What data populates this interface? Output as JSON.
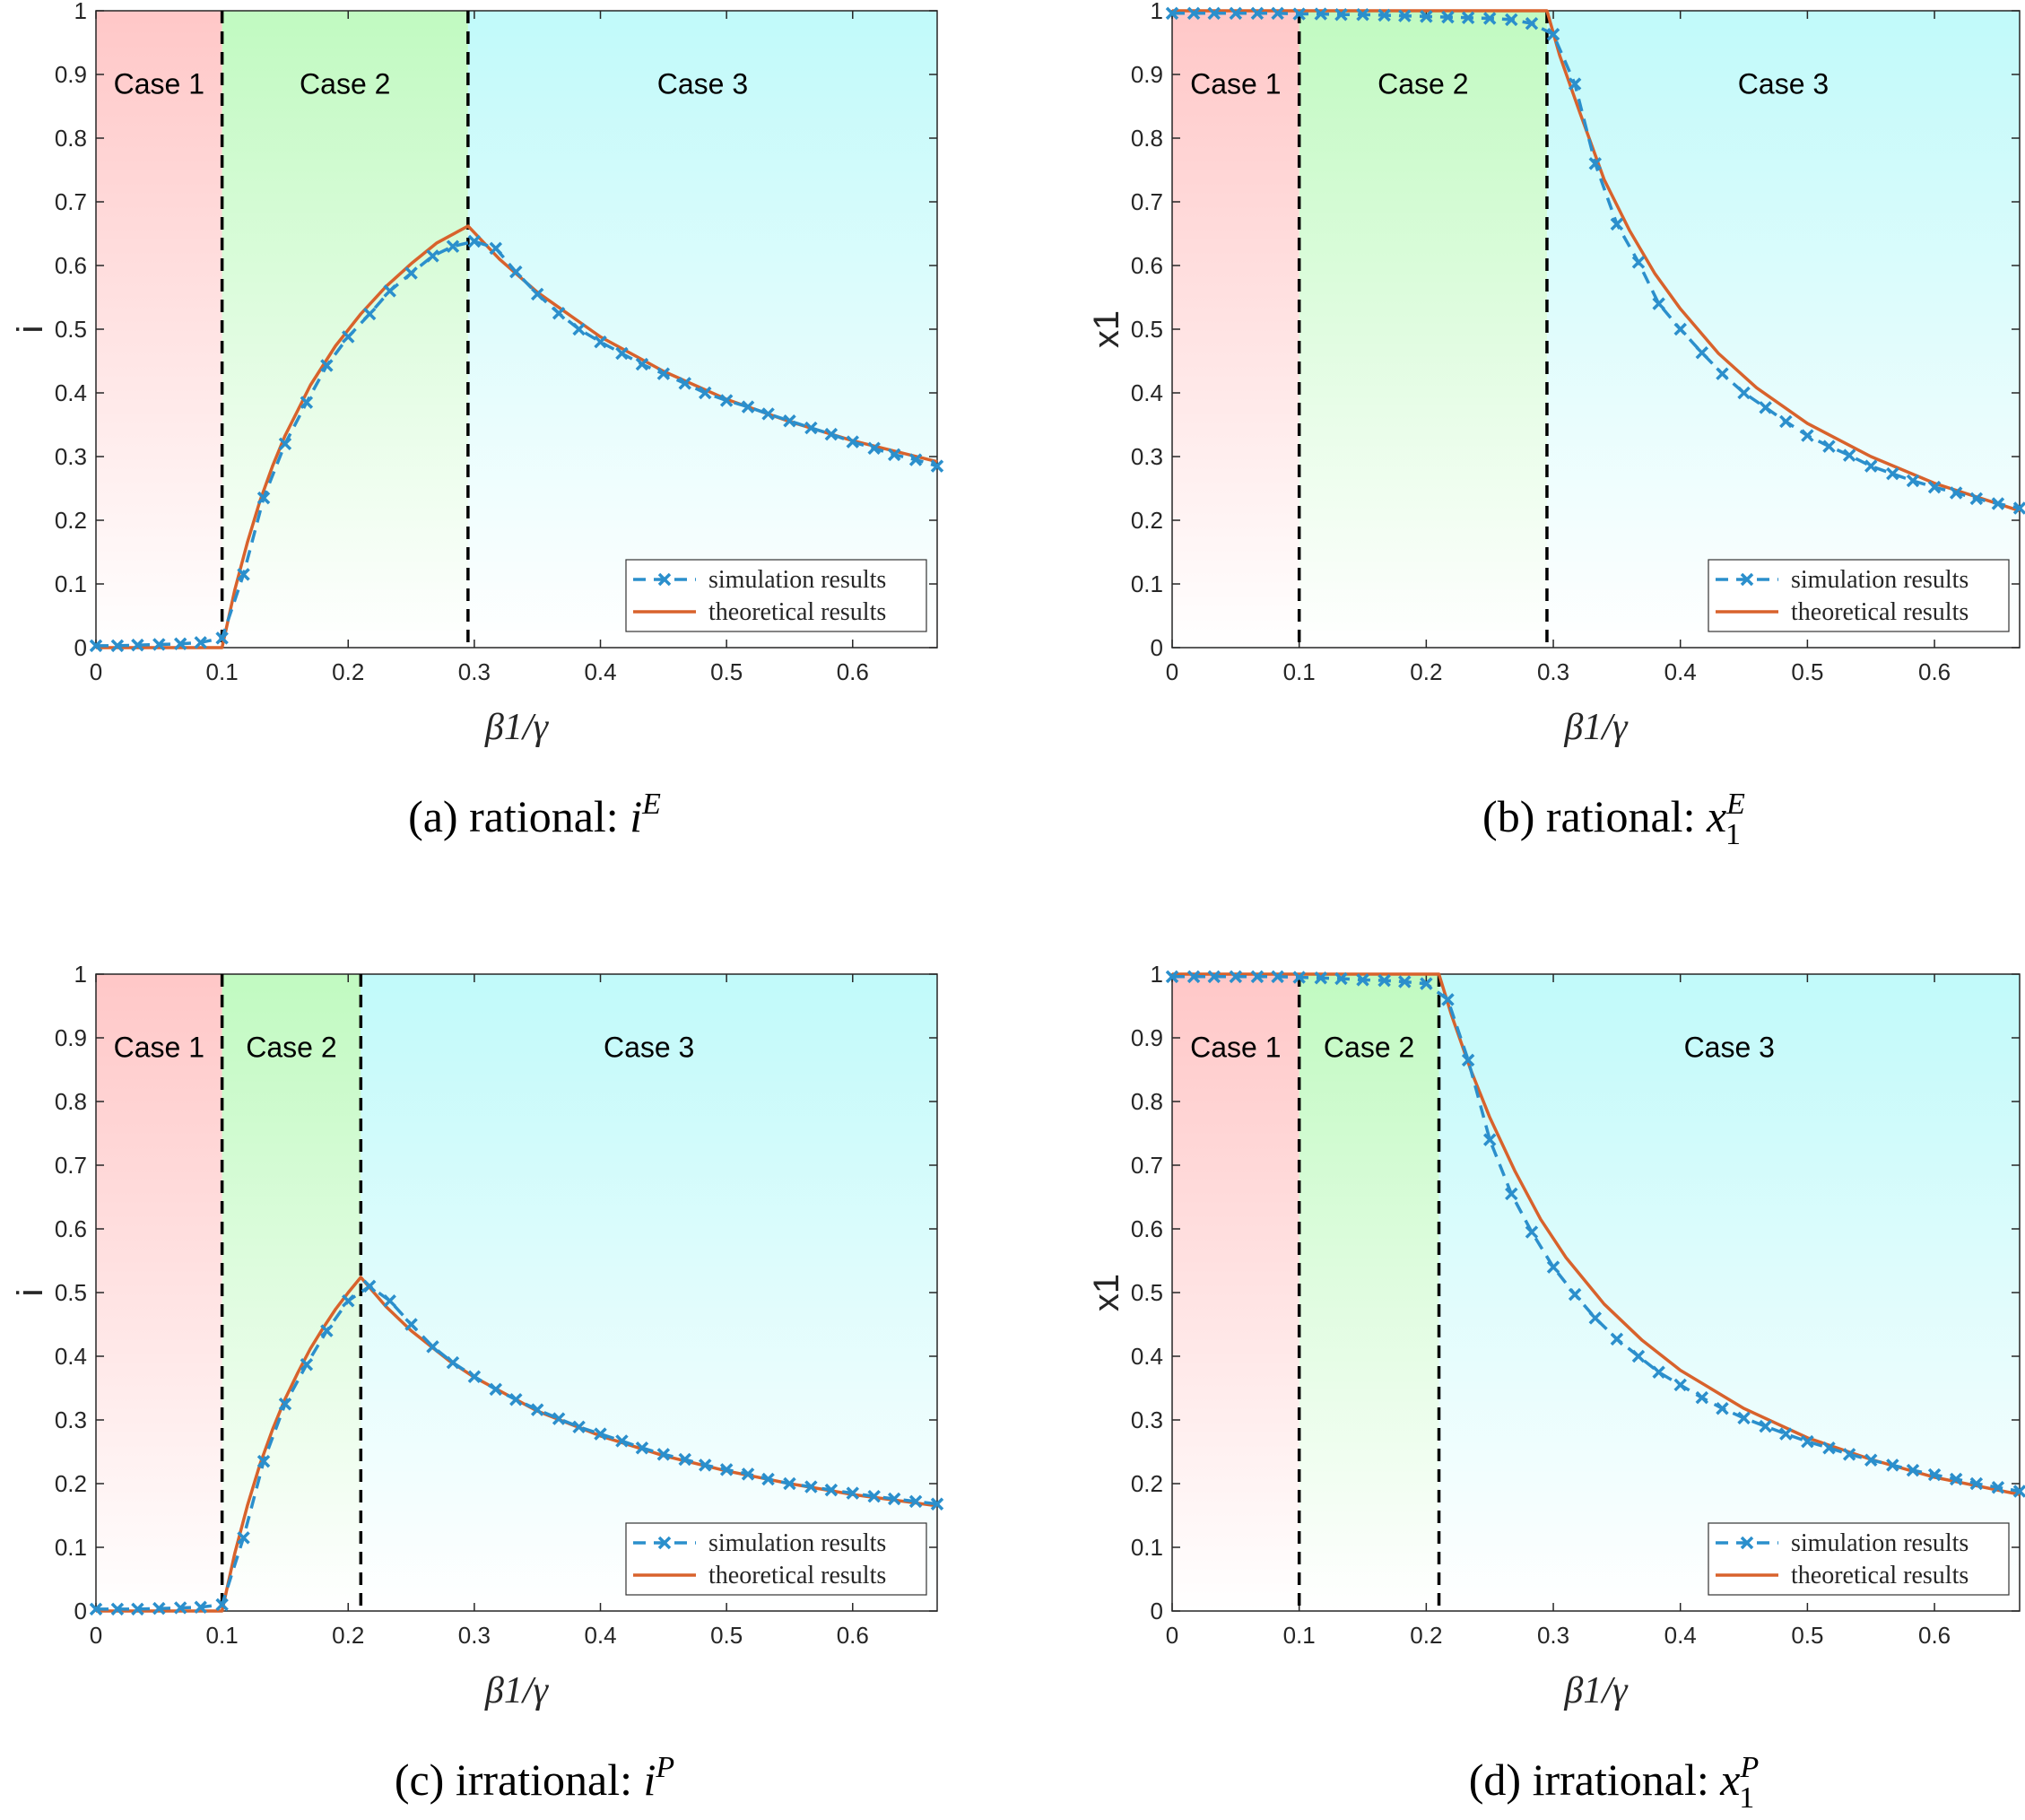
{
  "colors": {
    "case1": "#ff9a9a",
    "case2": "#8ef58e",
    "case3": "#8ef5f5",
    "simulation": "#2b8fcc",
    "theoretical": "#d8622c",
    "boundary": "#000000",
    "axis": "#262626"
  },
  "chart_data": [
    {
      "type": "line",
      "panel": "a",
      "caption_label": "(a)",
      "caption_text": "rational:",
      "caption_math_base": "i",
      "caption_math_sub": "",
      "caption_math_sup": "E",
      "xlabel": "β1/γ",
      "ylabel": "i",
      "xlim": [
        0,
        0.667
      ],
      "ylim": [
        0,
        1
      ],
      "xticks": [
        0,
        0.1,
        0.2,
        0.3,
        0.4,
        0.5,
        0.6
      ],
      "xtick_labels": [
        "0",
        "0.1",
        "0.2",
        "0.3",
        "0.4",
        "0.5",
        "0.6"
      ],
      "yticks": [
        0,
        0.1,
        0.2,
        0.3,
        0.4,
        0.5,
        0.6,
        0.7,
        0.8,
        0.9,
        1
      ],
      "ytick_labels": [
        "0",
        "0.1",
        "0.2",
        "0.3",
        "0.4",
        "0.5",
        "0.6",
        "0.7",
        "0.8",
        "0.9",
        "1"
      ],
      "boundaries": [
        0.1,
        0.295
      ],
      "regions": [
        {
          "label": "Case 1",
          "from": 0,
          "to": 0.1
        },
        {
          "label": "Case 2",
          "from": 0.1,
          "to": 0.295
        },
        {
          "label": "Case 3",
          "from": 0.295,
          "to": 0.667
        }
      ],
      "legend": [
        "simulation results",
        "theoretical results"
      ],
      "series": [
        {
          "name": "simulation results",
          "x": [
            0,
            0.017,
            0.033,
            0.05,
            0.067,
            0.083,
            0.1,
            0.117,
            0.133,
            0.15,
            0.167,
            0.183,
            0.2,
            0.217,
            0.233,
            0.25,
            0.267,
            0.283,
            0.3,
            0.317,
            0.333,
            0.35,
            0.367,
            0.383,
            0.4,
            0.417,
            0.433,
            0.45,
            0.467,
            0.483,
            0.5,
            0.517,
            0.533,
            0.55,
            0.567,
            0.583,
            0.6,
            0.617,
            0.633,
            0.65,
            0.667
          ],
          "values": [
            0.003,
            0.003,
            0.004,
            0.005,
            0.006,
            0.008,
            0.015,
            0.115,
            0.235,
            0.32,
            0.385,
            0.443,
            0.488,
            0.524,
            0.56,
            0.588,
            0.615,
            0.63,
            0.638,
            0.627,
            0.59,
            0.555,
            0.525,
            0.5,
            0.48,
            0.462,
            0.445,
            0.43,
            0.415,
            0.4,
            0.388,
            0.378,
            0.367,
            0.356,
            0.345,
            0.335,
            0.323,
            0.313,
            0.303,
            0.295,
            0.285
          ]
        },
        {
          "name": "theoretical results",
          "x": [
            0,
            0.1,
            0.11,
            0.12,
            0.13,
            0.14,
            0.15,
            0.17,
            0.19,
            0.21,
            0.23,
            0.25,
            0.27,
            0.295,
            0.32,
            0.35,
            0.4,
            0.45,
            0.5,
            0.55,
            0.6,
            0.667
          ],
          "values": [
            0,
            0,
            0.09,
            0.165,
            0.23,
            0.285,
            0.333,
            0.412,
            0.474,
            0.524,
            0.567,
            0.603,
            0.635,
            0.662,
            0.61,
            0.558,
            0.488,
            0.434,
            0.39,
            0.355,
            0.325,
            0.292
          ]
        }
      ]
    },
    {
      "type": "line",
      "panel": "b",
      "caption_label": "(b)",
      "caption_text": "rational:",
      "caption_math_base": "x",
      "caption_math_sub": "1",
      "caption_math_sup": "E",
      "xlabel": "β1/γ",
      "ylabel": "x1",
      "xlim": [
        0,
        0.667
      ],
      "ylim": [
        0,
        1
      ],
      "xticks": [
        0,
        0.1,
        0.2,
        0.3,
        0.4,
        0.5,
        0.6
      ],
      "xtick_labels": [
        "0",
        "0.1",
        "0.2",
        "0.3",
        "0.4",
        "0.5",
        "0.6"
      ],
      "yticks": [
        0,
        0.1,
        0.2,
        0.3,
        0.4,
        0.5,
        0.6,
        0.7,
        0.8,
        0.9,
        1
      ],
      "ytick_labels": [
        "0",
        "0.1",
        "0.2",
        "0.3",
        "0.4",
        "0.5",
        "0.6",
        "0.7",
        "0.8",
        "0.9",
        "1"
      ],
      "boundaries": [
        0.1,
        0.295
      ],
      "regions": [
        {
          "label": "Case 1",
          "from": 0,
          "to": 0.1
        },
        {
          "label": "Case 2",
          "from": 0.1,
          "to": 0.295
        },
        {
          "label": "Case 3",
          "from": 0.295,
          "to": 0.667
        }
      ],
      "legend": [
        "simulation results",
        "theoretical results"
      ],
      "series": [
        {
          "name": "simulation results",
          "x": [
            0,
            0.017,
            0.033,
            0.05,
            0.067,
            0.083,
            0.1,
            0.117,
            0.133,
            0.15,
            0.167,
            0.183,
            0.2,
            0.217,
            0.233,
            0.25,
            0.267,
            0.283,
            0.3,
            0.317,
            0.333,
            0.35,
            0.367,
            0.383,
            0.4,
            0.417,
            0.433,
            0.45,
            0.467,
            0.483,
            0.5,
            0.517,
            0.533,
            0.55,
            0.567,
            0.583,
            0.6,
            0.617,
            0.633,
            0.65,
            0.667
          ],
          "values": [
            0.996,
            0.996,
            0.996,
            0.996,
            0.996,
            0.996,
            0.995,
            0.995,
            0.994,
            0.994,
            0.993,
            0.992,
            0.991,
            0.99,
            0.989,
            0.988,
            0.986,
            0.98,
            0.963,
            0.885,
            0.76,
            0.665,
            0.605,
            0.54,
            0.5,
            0.463,
            0.43,
            0.4,
            0.377,
            0.355,
            0.333,
            0.316,
            0.302,
            0.285,
            0.273,
            0.262,
            0.252,
            0.243,
            0.234,
            0.226,
            0.219
          ]
        },
        {
          "name": "theoretical results",
          "x": [
            0,
            0.295,
            0.305,
            0.32,
            0.34,
            0.36,
            0.38,
            0.4,
            0.43,
            0.46,
            0.5,
            0.55,
            0.6,
            0.667
          ],
          "values": [
            1,
            1,
            0.93,
            0.845,
            0.735,
            0.655,
            0.587,
            0.532,
            0.462,
            0.408,
            0.352,
            0.3,
            0.258,
            0.215
          ]
        }
      ]
    },
    {
      "type": "line",
      "panel": "c",
      "caption_label": "(c)",
      "caption_text": "irrational:",
      "caption_math_base": "i",
      "caption_math_sub": "",
      "caption_math_sup": "P",
      "xlabel": "β1/γ",
      "ylabel": "i",
      "xlim": [
        0,
        0.667
      ],
      "ylim": [
        0,
        1
      ],
      "xticks": [
        0,
        0.1,
        0.2,
        0.3,
        0.4,
        0.5,
        0.6
      ],
      "xtick_labels": [
        "0",
        "0.1",
        "0.2",
        "0.3",
        "0.4",
        "0.5",
        "0.6"
      ],
      "yticks": [
        0,
        0.1,
        0.2,
        0.3,
        0.4,
        0.5,
        0.6,
        0.7,
        0.8,
        0.9,
        1
      ],
      "ytick_labels": [
        "0",
        "0.1",
        "0.2",
        "0.3",
        "0.4",
        "0.5",
        "0.6",
        "0.7",
        "0.8",
        "0.9",
        "1"
      ],
      "boundaries": [
        0.1,
        0.21
      ],
      "regions": [
        {
          "label": "Case 1",
          "from": 0,
          "to": 0.1
        },
        {
          "label": "Case 2",
          "from": 0.1,
          "to": 0.21
        },
        {
          "label": "Case 3",
          "from": 0.21,
          "to": 0.667
        }
      ],
      "legend": [
        "simulation results",
        "theoretical results"
      ],
      "series": [
        {
          "name": "simulation results",
          "x": [
            0,
            0.017,
            0.033,
            0.05,
            0.067,
            0.083,
            0.1,
            0.117,
            0.133,
            0.15,
            0.167,
            0.183,
            0.2,
            0.217,
            0.233,
            0.25,
            0.267,
            0.283,
            0.3,
            0.317,
            0.333,
            0.35,
            0.367,
            0.383,
            0.4,
            0.417,
            0.433,
            0.45,
            0.467,
            0.483,
            0.5,
            0.517,
            0.533,
            0.55,
            0.567,
            0.583,
            0.6,
            0.617,
            0.633,
            0.65,
            0.667
          ],
          "values": [
            0.003,
            0.003,
            0.003,
            0.004,
            0.005,
            0.006,
            0.01,
            0.115,
            0.235,
            0.325,
            0.387,
            0.44,
            0.487,
            0.51,
            0.487,
            0.45,
            0.415,
            0.39,
            0.368,
            0.348,
            0.332,
            0.316,
            0.302,
            0.289,
            0.278,
            0.267,
            0.256,
            0.246,
            0.238,
            0.229,
            0.222,
            0.215,
            0.207,
            0.2,
            0.195,
            0.19,
            0.185,
            0.18,
            0.176,
            0.172,
            0.168
          ]
        },
        {
          "name": "theoretical results",
          "x": [
            0,
            0.1,
            0.11,
            0.12,
            0.13,
            0.14,
            0.15,
            0.16,
            0.17,
            0.18,
            0.19,
            0.2,
            0.21,
            0.23,
            0.25,
            0.28,
            0.3,
            0.35,
            0.4,
            0.45,
            0.5,
            0.55,
            0.6,
            0.667
          ],
          "values": [
            0,
            0,
            0.09,
            0.165,
            0.23,
            0.285,
            0.333,
            0.374,
            0.412,
            0.444,
            0.474,
            0.5,
            0.524,
            0.478,
            0.44,
            0.393,
            0.367,
            0.314,
            0.275,
            0.244,
            0.22,
            0.2,
            0.183,
            0.165
          ]
        }
      ]
    },
    {
      "type": "line",
      "panel": "d",
      "caption_label": "(d)",
      "caption_text": "irrational:",
      "caption_math_base": "x",
      "caption_math_sub": "1",
      "caption_math_sup": "P",
      "xlabel": "β1/γ",
      "ylabel": "x1",
      "xlim": [
        0,
        0.667
      ],
      "ylim": [
        0,
        1
      ],
      "xticks": [
        0,
        0.1,
        0.2,
        0.3,
        0.4,
        0.5,
        0.6
      ],
      "xtick_labels": [
        "0",
        "0.1",
        "0.2",
        "0.3",
        "0.4",
        "0.5",
        "0.6"
      ],
      "yticks": [
        0,
        0.1,
        0.2,
        0.3,
        0.4,
        0.5,
        0.6,
        0.7,
        0.8,
        0.9,
        1
      ],
      "ytick_labels": [
        "0",
        "0.1",
        "0.2",
        "0.3",
        "0.4",
        "0.5",
        "0.6",
        "0.7",
        "0.8",
        "0.9",
        "1"
      ],
      "boundaries": [
        0.1,
        0.21
      ],
      "regions": [
        {
          "label": "Case 1",
          "from": 0,
          "to": 0.1
        },
        {
          "label": "Case 2",
          "from": 0.1,
          "to": 0.21
        },
        {
          "label": "Case 3",
          "from": 0.21,
          "to": 0.667
        }
      ],
      "legend": [
        "simulation results",
        "theoretical results"
      ],
      "series": [
        {
          "name": "simulation results",
          "x": [
            0,
            0.017,
            0.033,
            0.05,
            0.067,
            0.083,
            0.1,
            0.117,
            0.133,
            0.15,
            0.167,
            0.183,
            0.2,
            0.217,
            0.233,
            0.25,
            0.267,
            0.283,
            0.3,
            0.317,
            0.333,
            0.35,
            0.367,
            0.383,
            0.4,
            0.417,
            0.433,
            0.45,
            0.467,
            0.483,
            0.5,
            0.517,
            0.533,
            0.55,
            0.567,
            0.583,
            0.6,
            0.617,
            0.633,
            0.65,
            0.667
          ],
          "values": [
            0.996,
            0.996,
            0.996,
            0.996,
            0.996,
            0.996,
            0.995,
            0.994,
            0.993,
            0.991,
            0.99,
            0.988,
            0.985,
            0.96,
            0.865,
            0.74,
            0.655,
            0.595,
            0.54,
            0.497,
            0.46,
            0.427,
            0.4,
            0.375,
            0.355,
            0.335,
            0.318,
            0.303,
            0.29,
            0.278,
            0.266,
            0.256,
            0.246,
            0.237,
            0.229,
            0.221,
            0.214,
            0.207,
            0.2,
            0.194,
            0.188
          ]
        },
        {
          "name": "theoretical results",
          "x": [
            0,
            0.21,
            0.22,
            0.235,
            0.25,
            0.27,
            0.29,
            0.31,
            0.34,
            0.37,
            0.4,
            0.45,
            0.5,
            0.55,
            0.6,
            0.667
          ],
          "values": [
            1,
            1,
            0.935,
            0.85,
            0.775,
            0.69,
            0.615,
            0.555,
            0.482,
            0.425,
            0.378,
            0.318,
            0.272,
            0.238,
            0.21,
            0.183
          ]
        }
      ]
    }
  ]
}
